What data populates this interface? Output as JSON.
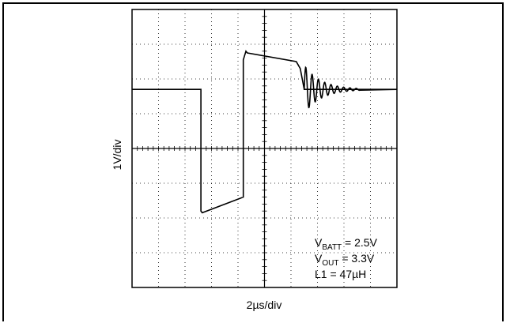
{
  "chart_data": {
    "type": "line",
    "title": "",
    "xlabel": "2µs/div",
    "ylabel": "1V/div",
    "grid": true,
    "xlim": [
      0,
      10
    ],
    "ylim": [
      0,
      8
    ],
    "series": [
      {
        "values_desc": "",
        "x": [
          0,
          2.6,
          2.6,
          2.65,
          4.2,
          4.2,
          4.3,
          4.35,
          6.2,
          6.35,
          6.5,
          10
        ],
        "y": [
          5.7,
          5.7,
          2.2,
          2.15,
          2.6,
          6.55,
          6.8,
          6.75,
          6.5,
          6.3,
          5.7,
          5.7
        ]
      }
    ],
    "ringing": {
      "start": 6.5,
      "end": 8.6,
      "level": 5.7,
      "amplitude": 0.7
    },
    "annotations": [
      {
        "main": "V",
        "sub": "BATT",
        "rest": " = 2.5V"
      },
      {
        "main": "V",
        "sub": "OUT",
        "rest": " = 3.3V"
      },
      {
        "main": "L1 = 47µH",
        "sub": "",
        "rest": ""
      }
    ]
  }
}
